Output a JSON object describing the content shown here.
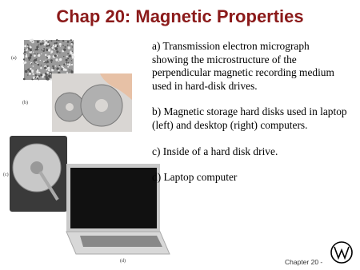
{
  "slide": {
    "title": "Chap 20: Magnetic Properties",
    "image_labels": [
      "(a)",
      "(b)",
      "(c)",
      "(d)"
    ],
    "descriptions": [
      "a) Transmission electron micrograph showing the microstructure of the perpendicular magnetic recording medium used in hard-disk drives.",
      "b) Magnetic storage hard disks used in laptop (left) and desktop (right) computers.",
      "c) Inside of a hard disk drive.",
      "d) Laptop computer"
    ],
    "footer": "Chapter 20 -"
  }
}
